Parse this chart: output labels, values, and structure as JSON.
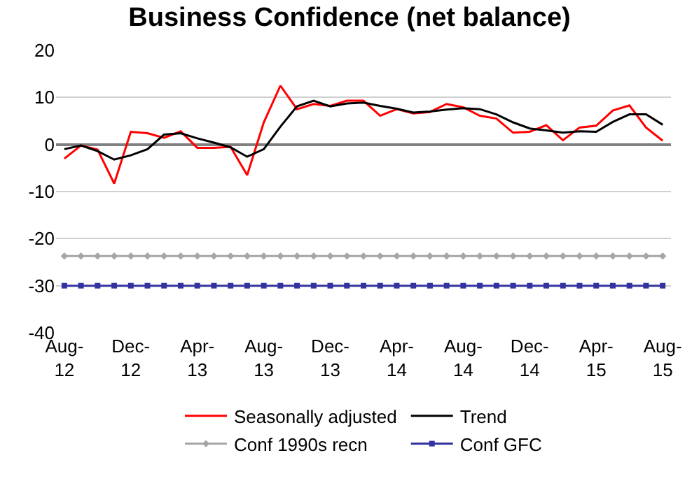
{
  "chart_data": {
    "type": "line",
    "title": "Business Confidence (net balance)",
    "categories": [
      "Aug-12",
      null,
      null,
      null,
      "Dec-12",
      null,
      null,
      null,
      "Apr-13",
      null,
      null,
      null,
      "Aug-13",
      null,
      null,
      null,
      "Dec-13",
      null,
      null,
      null,
      "Apr-14",
      null,
      null,
      null,
      "Aug-14",
      null,
      null,
      null,
      "Dec-14",
      null,
      null,
      null,
      "Apr-15",
      null,
      null,
      null,
      "Aug-15"
    ],
    "series": [
      {
        "name": "Seasonally adjusted",
        "color": "#ff0000",
        "marker": "none",
        "values": [
          -3.0,
          -0.2,
          -1.1,
          -8.3,
          2.7,
          2.4,
          1.4,
          2.8,
          -0.7,
          -0.7,
          -0.5,
          -6.5,
          4.7,
          12.5,
          7.5,
          8.6,
          8.2,
          9.3,
          9.3,
          6.1,
          7.5,
          6.6,
          6.9,
          8.6,
          7.9,
          6.1,
          5.5,
          2.5,
          2.7,
          4.1,
          0.9,
          3.6,
          4.0,
          7.2,
          8.3,
          3.6,
          0.8
        ]
      },
      {
        "name": "Trend",
        "color": "#000000",
        "marker": "none",
        "values": [
          -1.0,
          -0.2,
          -1.4,
          -3.2,
          -2.3,
          -1.0,
          2.1,
          2.4,
          1.3,
          0.4,
          -0.6,
          -2.6,
          -1.0,
          3.8,
          8.1,
          9.3,
          8.1,
          8.7,
          8.9,
          8.2,
          7.6,
          6.8,
          7.0,
          7.4,
          7.7,
          7.5,
          6.4,
          4.7,
          3.4,
          3.0,
          2.5,
          2.8,
          2.7,
          4.8,
          6.4,
          6.4,
          4.2
        ]
      },
      {
        "name": "Conf 1990s recn",
        "color": "#a6a6a6",
        "marker": "diamond",
        "values": [
          -23.7,
          -23.7,
          -23.7,
          -23.7,
          -23.7,
          -23.7,
          -23.7,
          -23.7,
          -23.7,
          -23.7,
          -23.7,
          -23.7,
          -23.7,
          -23.7,
          -23.7,
          -23.7,
          -23.7,
          -23.7,
          -23.7,
          -23.7,
          -23.7,
          -23.7,
          -23.7,
          -23.7,
          -23.7,
          -23.7,
          -23.7,
          -23.7,
          -23.7,
          -23.7,
          -23.7,
          -23.7,
          -23.7,
          -23.7,
          -23.7,
          -23.7,
          -23.7
        ]
      },
      {
        "name": "Conf GFC",
        "color": "#3333a0",
        "marker": "square",
        "values": [
          -30,
          -30,
          -30,
          -30,
          -30,
          -30,
          -30,
          -30,
          -30,
          -30,
          -30,
          -30,
          -30,
          -30,
          -30,
          -30,
          -30,
          -30,
          -30,
          -30,
          -30,
          -30,
          -30,
          -30,
          -30,
          -30,
          -30,
          -30,
          -30,
          -30,
          -30,
          -30,
          -30,
          -30,
          -30,
          -30,
          -30
        ]
      }
    ],
    "ylim": [
      -40,
      20
    ],
    "yticks": [
      -40,
      -30,
      -20,
      -10,
      0,
      10,
      20
    ],
    "grid": "y",
    "legend": "bottom",
    "line_style": "solid"
  }
}
